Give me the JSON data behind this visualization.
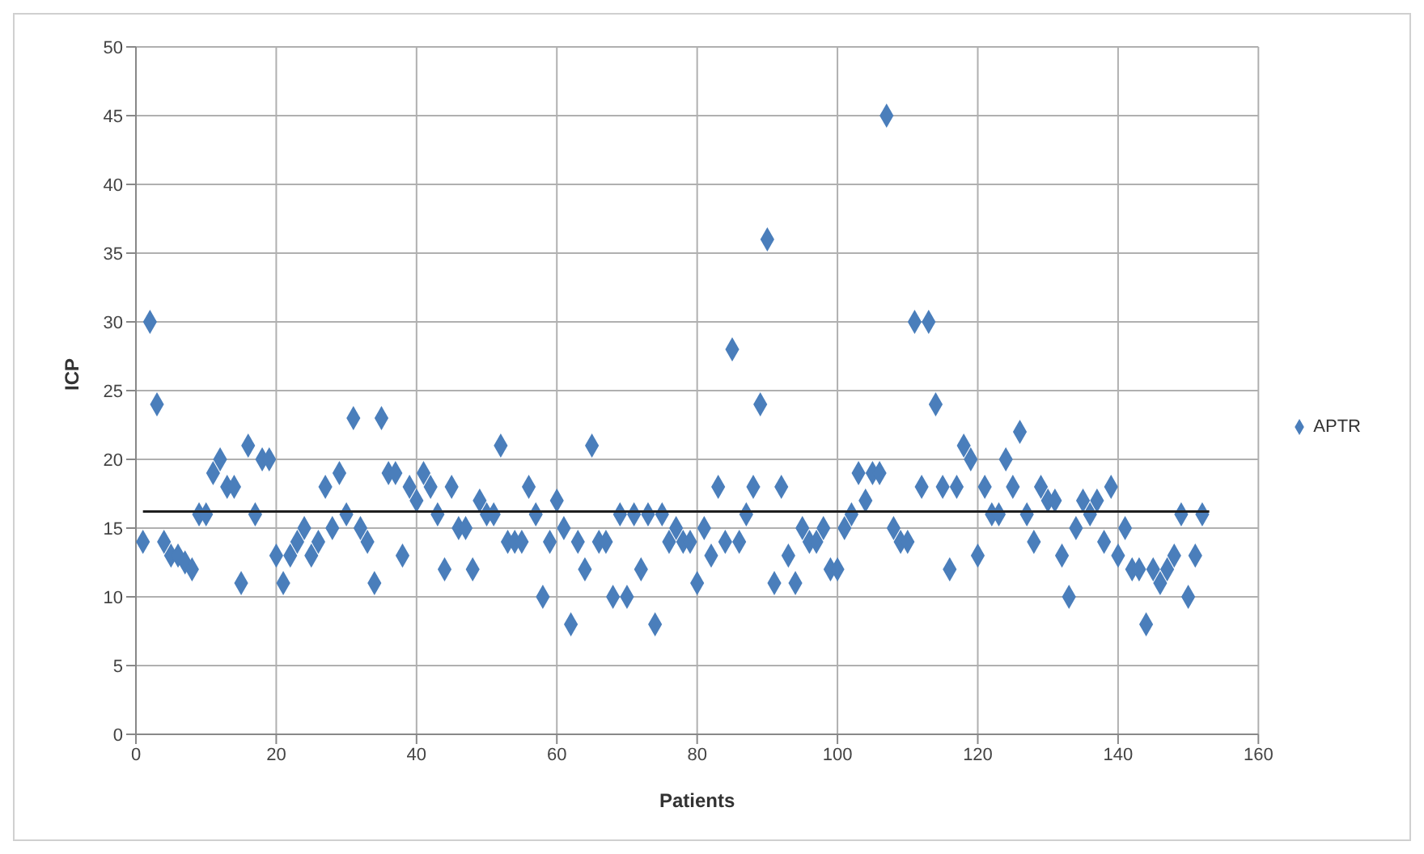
{
  "chart_data": {
    "type": "scatter",
    "xlabel": "Patients",
    "ylabel": "ICP",
    "xlim": [
      0,
      160
    ],
    "xticks": [
      0,
      20,
      40,
      60,
      80,
      100,
      120,
      140,
      160
    ],
    "ylim": [
      0,
      50
    ],
    "yticks": [
      0,
      5,
      10,
      15,
      20,
      25,
      30,
      35,
      40,
      45,
      50
    ],
    "grid": true,
    "legend": "right",
    "marker": "diamond",
    "series": [
      {
        "name": "APTR",
        "color": "#4a7ebb",
        "x": [
          1,
          2,
          3,
          4,
          5,
          6,
          7,
          8,
          9,
          10,
          11,
          12,
          13,
          14,
          15,
          16,
          17,
          18,
          19,
          20,
          21,
          22,
          23,
          24,
          25,
          26,
          27,
          28,
          29,
          30,
          31,
          32,
          33,
          34,
          35,
          36,
          37,
          38,
          39,
          40,
          41,
          42,
          43,
          44,
          45,
          46,
          47,
          48,
          49,
          50,
          51,
          52,
          53,
          54,
          55,
          56,
          57,
          58,
          59,
          60,
          61,
          62,
          63,
          64,
          65,
          66,
          67,
          68,
          69,
          70,
          71,
          72,
          73,
          74,
          75,
          76,
          77,
          78,
          79,
          80,
          81,
          82,
          83,
          84,
          85,
          86,
          87,
          88,
          89,
          90,
          91,
          92,
          93,
          94,
          95,
          96,
          97,
          98,
          99,
          100,
          101,
          102,
          103,
          104,
          105,
          106,
          107,
          108,
          109,
          110,
          111,
          112,
          113,
          114,
          115,
          116,
          117,
          118,
          119,
          120,
          121,
          122,
          123,
          124,
          125,
          126,
          127,
          128,
          129,
          130,
          131,
          132,
          133,
          134,
          135,
          136,
          137,
          138,
          139,
          140,
          141,
          142,
          143,
          144,
          145,
          146,
          147,
          148,
          149,
          150,
          151,
          152
        ],
        "values": [
          14,
          30,
          24,
          14,
          13,
          13,
          12.5,
          12,
          16,
          16,
          19,
          20,
          18,
          18,
          11,
          21,
          16,
          20,
          20,
          13,
          11,
          13,
          14,
          15,
          13,
          14,
          18,
          15,
          19,
          16,
          23,
          15,
          14,
          11,
          23,
          19,
          19,
          13,
          18,
          17,
          19,
          18,
          16,
          12,
          18,
          15,
          15,
          12,
          17,
          16,
          16,
          21,
          14,
          14,
          14,
          18,
          16,
          10,
          14,
          17,
          15,
          8,
          14,
          12,
          21,
          14,
          14,
          10,
          16,
          10,
          16,
          12,
          16,
          8,
          16,
          14,
          15,
          14,
          14,
          11,
          15,
          13,
          18,
          14,
          28,
          14,
          16,
          18,
          24,
          36,
          11,
          18,
          13,
          11,
          15,
          14,
          14,
          15,
          12,
          12,
          15,
          16,
          19,
          17,
          19,
          19,
          45,
          15,
          14,
          14,
          30,
          18,
          30,
          24,
          18,
          12,
          18,
          21,
          20,
          13,
          18,
          16,
          16,
          20,
          18,
          22,
          16,
          14,
          18,
          17,
          17,
          13,
          10,
          15,
          17,
          16,
          17,
          14,
          18,
          13,
          15,
          12,
          12,
          8,
          12,
          11,
          12,
          13,
          16,
          10,
          13,
          16
        ]
      },
      {
        "type": "line",
        "marker": "none",
        "color": "#1f1f1f",
        "x": [
          1,
          153
        ],
        "values": [
          16.2,
          16.2
        ]
      }
    ]
  }
}
